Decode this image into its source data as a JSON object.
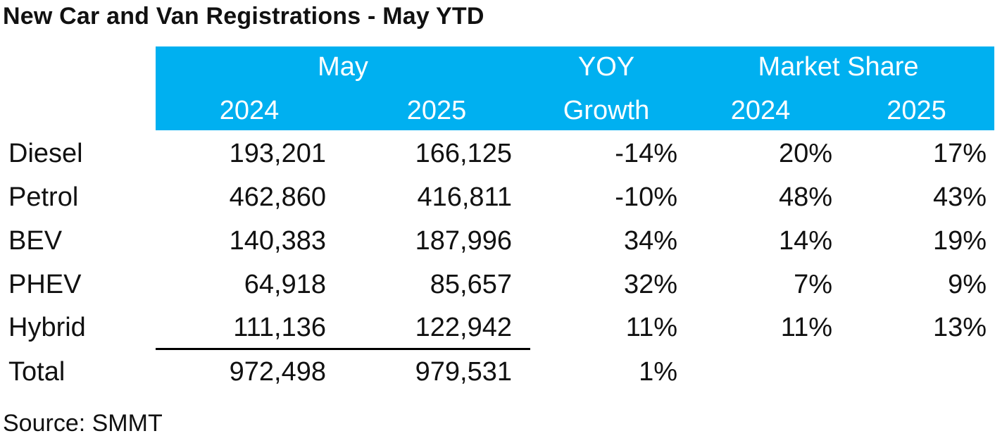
{
  "chart_data": {
    "type": "table",
    "title": "New Car and Van Registrations - May YTD",
    "group_headers": {
      "may": "May",
      "yoy": "YOY",
      "market_share": "Market Share"
    },
    "sub_headers": {
      "may_2024": "2024",
      "may_2025": "2025",
      "yoy_growth": "Growth",
      "share_2024": "2024",
      "share_2025": "2025"
    },
    "rows": [
      {
        "label": "Diesel",
        "may_2024": "193,201",
        "may_2025": "166,125",
        "yoy": "-14%",
        "share_2024": "20%",
        "share_2025": "17%"
      },
      {
        "label": "Petrol",
        "may_2024": "462,860",
        "may_2025": "416,811",
        "yoy": "-10%",
        "share_2024": "48%",
        "share_2025": "43%"
      },
      {
        "label": "BEV",
        "may_2024": "140,383",
        "may_2025": "187,996",
        "yoy": "34%",
        "share_2024": "14%",
        "share_2025": "19%"
      },
      {
        "label": "PHEV",
        "may_2024": "64,918",
        "may_2025": "85,657",
        "yoy": "32%",
        "share_2024": "7%",
        "share_2025": "9%"
      },
      {
        "label": "Hybrid",
        "may_2024": "111,136",
        "may_2025": "122,942",
        "yoy": "11%",
        "share_2024": "11%",
        "share_2025": "13%"
      }
    ],
    "total": {
      "label": "Total",
      "may_2024": "972,498",
      "may_2025": "979,531",
      "yoy": "1%"
    },
    "source": "Source: SMMT"
  },
  "colors": {
    "header_band": "#00b0f0",
    "header_text": "#ffffff",
    "body_text": "#111111"
  }
}
